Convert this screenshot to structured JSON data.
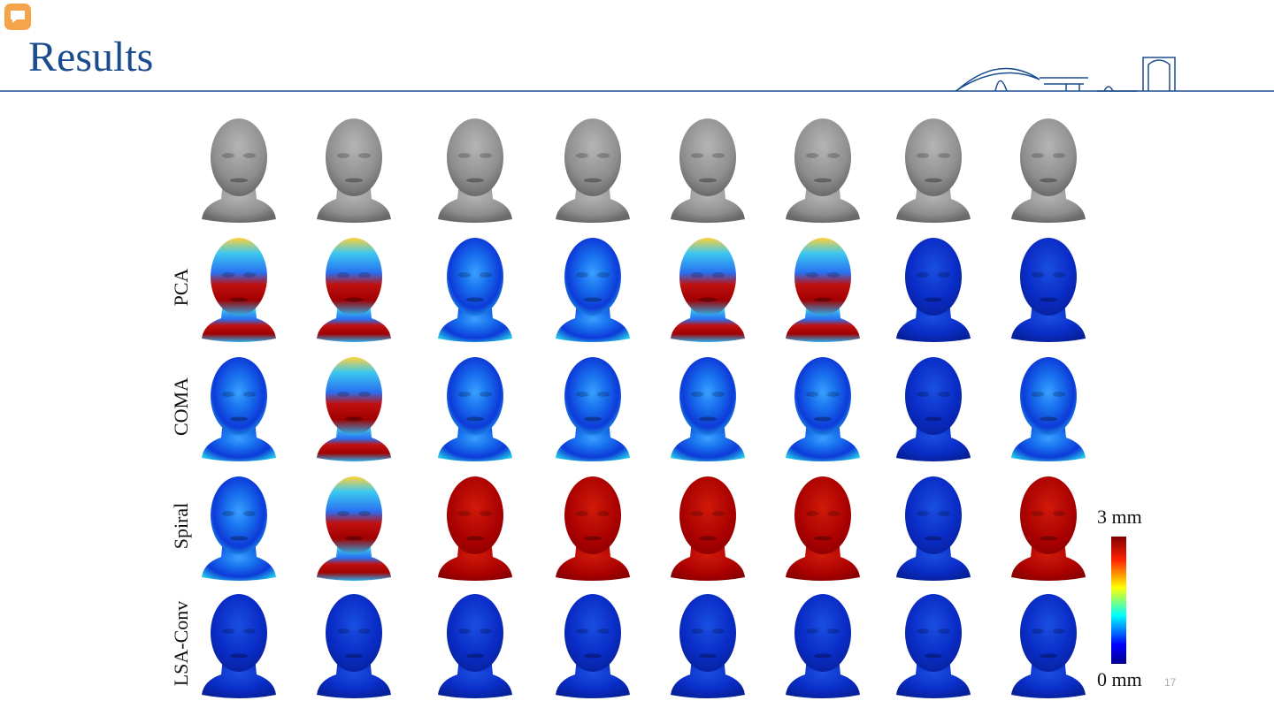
{
  "header": {
    "title": "Results"
  },
  "rows": [
    {
      "label": "PCA"
    },
    {
      "label": "COMA"
    },
    {
      "label": "Spiral"
    },
    {
      "label": "LSA-Conv"
    }
  ],
  "colorbar": {
    "max_label": "3 mm",
    "min_label": "0 mm"
  },
  "page_number": "17"
}
